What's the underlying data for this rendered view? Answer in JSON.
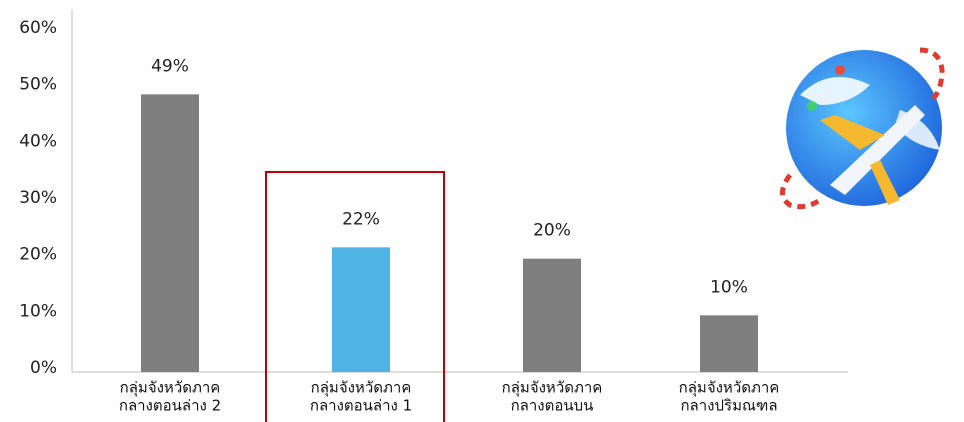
{
  "chart_data": {
    "type": "bar",
    "categories": [
      [
        "กลุ่มจังหวัดภาค",
        "กลางตอนล่าง 2"
      ],
      [
        "กลุ่มจังหวัดภาค",
        "กลางตอนล่าง 1"
      ],
      [
        "กลุ่มจังหวัดภาค",
        "กลางตอนบน"
      ],
      [
        "กลุ่มจังหวัดภาค",
        "กลางปริมณฑล"
      ]
    ],
    "values": [
      49,
      22,
      20,
      10
    ],
    "value_labels": [
      "49%",
      "22%",
      "20%",
      "10%"
    ],
    "colors": [
      "#7f7f7f",
      "#4fb3e6",
      "#7f7f7f",
      "#7f7f7f"
    ],
    "ylim": [
      0,
      60
    ],
    "yticks": [
      {
        "value": 0,
        "label": "0%"
      },
      {
        "value": 10,
        "label": "10%"
      },
      {
        "value": 20,
        "label": "20%"
      },
      {
        "value": 30,
        "label": "30%"
      },
      {
        "value": 40,
        "label": "40%"
      },
      {
        "value": 50,
        "label": "50%"
      },
      {
        "value": 60,
        "label": "60%"
      }
    ],
    "grid": false
  }
}
